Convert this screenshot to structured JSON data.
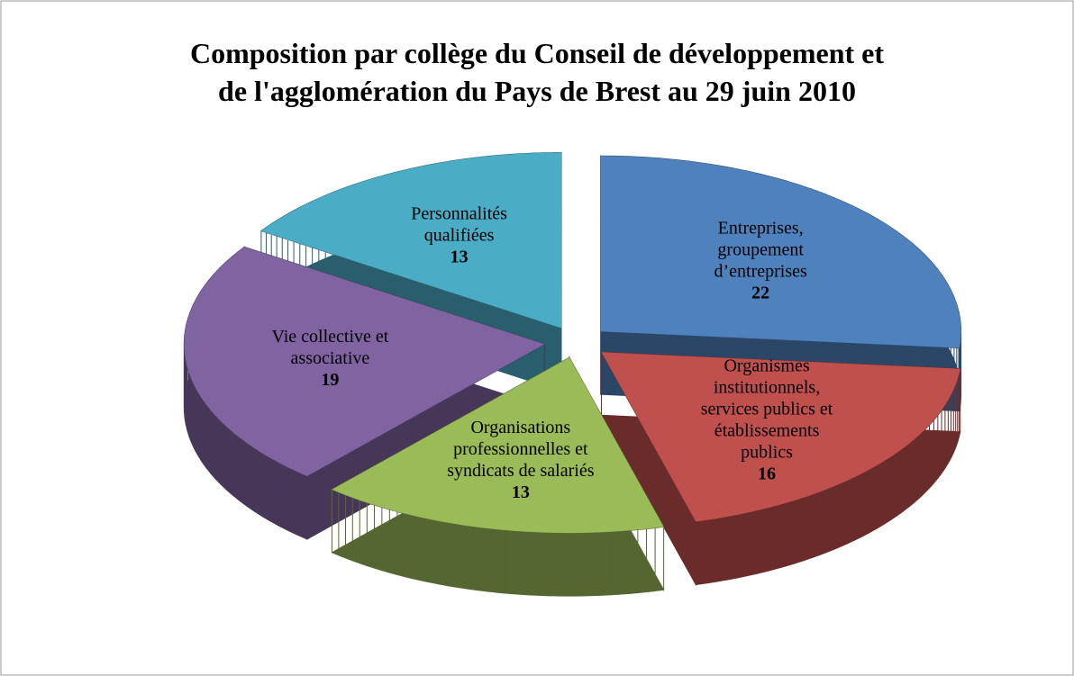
{
  "chart_data": {
    "type": "pie3d",
    "title": [
      "Composition par collège du Conseil de développement et",
      "de l'agglomération du Pays de Brest au 29 juin 2010"
    ],
    "categories": [
      [
        "Entreprises,",
        "groupement",
        "d’entreprises"
      ],
      [
        "Organismes",
        "institutionnels,",
        "services publics et",
        "établissements",
        "publics"
      ],
      [
        "Organisations",
        "professionnelles et",
        "syndicats de salariés"
      ],
      [
        "Vie collective et",
        "associative"
      ],
      [
        "Personnalités",
        "qualifiées"
      ]
    ],
    "values": [
      22,
      16,
      13,
      19,
      13
    ],
    "colors": [
      "#4f81bd",
      "#c0504d",
      "#9bbb59",
      "#8064a2",
      "#4bacc6"
    ]
  }
}
